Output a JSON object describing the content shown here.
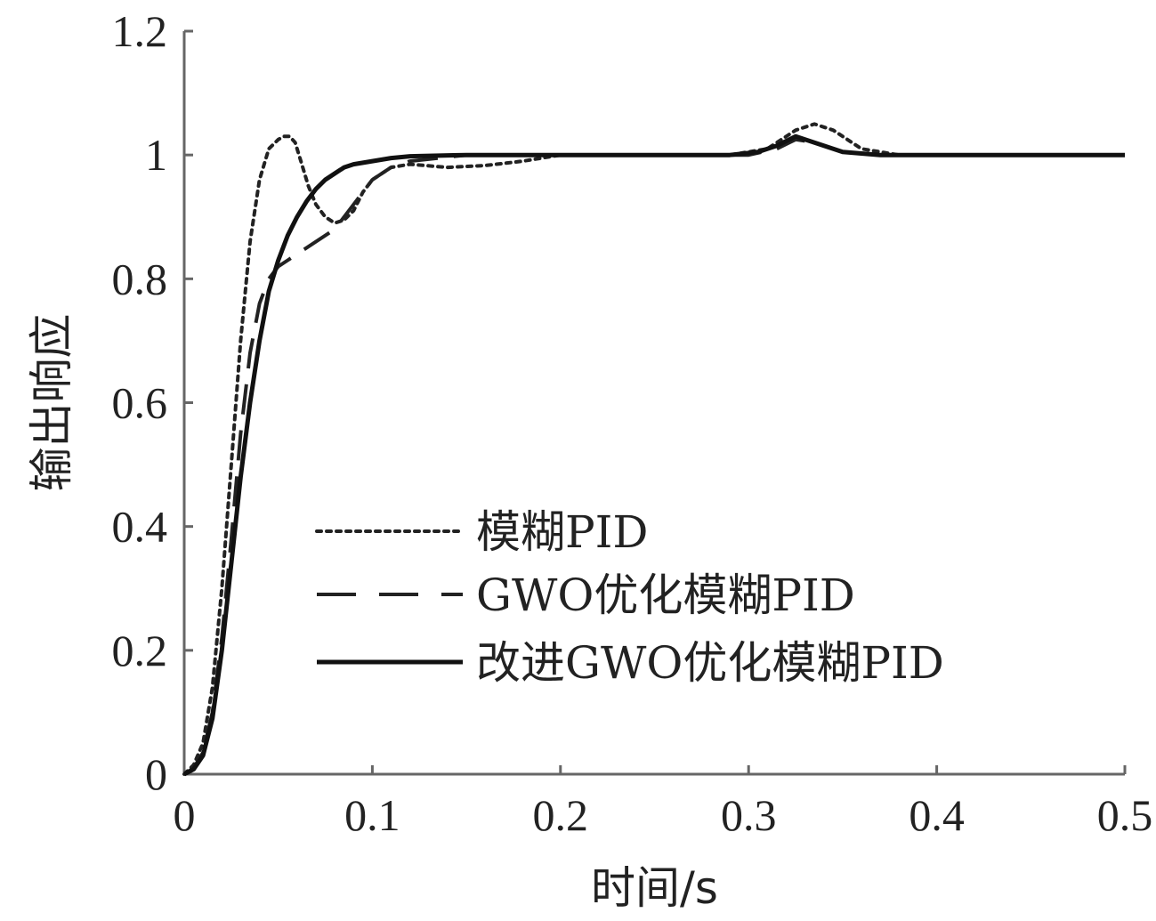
{
  "chart_data": {
    "type": "line",
    "title": "",
    "xlabel": "时间/s",
    "ylabel": "输出响应",
    "xlim": [
      0,
      0.5
    ],
    "ylim": [
      0,
      1.2
    ],
    "xticks": [
      0,
      0.1,
      0.2,
      0.3,
      0.4,
      0.5
    ],
    "xtick_labels": [
      "0",
      "0.1",
      "0.2",
      "0.3",
      "0.4",
      "0.5"
    ],
    "yticks": [
      0,
      0.2,
      0.4,
      0.6,
      0.8,
      1.0,
      1.2
    ],
    "ytick_labels": [
      "0",
      "0.2",
      "0.4",
      "0.6",
      "0.8",
      "1",
      "1.2"
    ],
    "grid": false,
    "legend_position": "center-right",
    "series": [
      {
        "name": "模糊PID",
        "style": "dotted",
        "color": "#222222",
        "x": [
          0,
          0.005,
          0.01,
          0.015,
          0.02,
          0.025,
          0.03,
          0.035,
          0.04,
          0.045,
          0.05,
          0.053,
          0.056,
          0.059,
          0.062,
          0.066,
          0.07,
          0.075,
          0.08,
          0.085,
          0.09,
          0.095,
          0.1,
          0.11,
          0.12,
          0.14,
          0.16,
          0.18,
          0.2,
          0.25,
          0.29,
          0.31,
          0.325,
          0.335,
          0.345,
          0.36,
          0.38,
          0.4,
          0.45,
          0.5
        ],
        "y": [
          0,
          0.015,
          0.05,
          0.14,
          0.3,
          0.5,
          0.7,
          0.86,
          0.96,
          1.01,
          1.025,
          1.03,
          1.03,
          1.02,
          0.99,
          0.95,
          0.92,
          0.9,
          0.89,
          0.895,
          0.91,
          0.94,
          0.96,
          0.98,
          0.985,
          0.98,
          0.983,
          0.99,
          1.0,
          1.0,
          1.0,
          1.01,
          1.04,
          1.05,
          1.04,
          1.01,
          1.0,
          1.0,
          1.0,
          1.0
        ]
      },
      {
        "name": "GWO优化模糊PID",
        "style": "dashed",
        "color": "#222222",
        "x": [
          0,
          0.005,
          0.01,
          0.015,
          0.02,
          0.025,
          0.03,
          0.035,
          0.04,
          0.045,
          0.05,
          0.055,
          0.06,
          0.07,
          0.08,
          0.09,
          0.1,
          0.11,
          0.12,
          0.15,
          0.2,
          0.25,
          0.3,
          0.315,
          0.325,
          0.335,
          0.35,
          0.37,
          0.4,
          0.45,
          0.5
        ],
        "y": [
          0,
          0.01,
          0.035,
          0.1,
          0.22,
          0.38,
          0.55,
          0.68,
          0.76,
          0.8,
          0.82,
          0.83,
          0.84,
          0.86,
          0.88,
          0.92,
          0.96,
          0.98,
          0.99,
          1.0,
          1.0,
          1.0,
          1.0,
          1.01,
          1.025,
          1.02,
          1.005,
          1.0,
          1.0,
          1.0,
          1.0
        ]
      },
      {
        "name": "改进GWO优化模糊PID",
        "style": "solid",
        "color": "#111111",
        "x": [
          0,
          0.005,
          0.01,
          0.015,
          0.02,
          0.025,
          0.03,
          0.035,
          0.04,
          0.045,
          0.05,
          0.055,
          0.06,
          0.065,
          0.07,
          0.075,
          0.08,
          0.085,
          0.09,
          0.1,
          0.11,
          0.12,
          0.15,
          0.2,
          0.25,
          0.29,
          0.305,
          0.315,
          0.325,
          0.335,
          0.35,
          0.37,
          0.4,
          0.45,
          0.5
        ],
        "y": [
          0,
          0.008,
          0.03,
          0.09,
          0.2,
          0.34,
          0.48,
          0.6,
          0.7,
          0.78,
          0.83,
          0.87,
          0.9,
          0.925,
          0.945,
          0.96,
          0.97,
          0.98,
          0.985,
          0.99,
          0.995,
          0.998,
          1.0,
          1.0,
          1.0,
          1.0,
          1.005,
          1.015,
          1.03,
          1.02,
          1.005,
          1.0,
          1.0,
          1.0,
          1.0
        ]
      }
    ]
  }
}
